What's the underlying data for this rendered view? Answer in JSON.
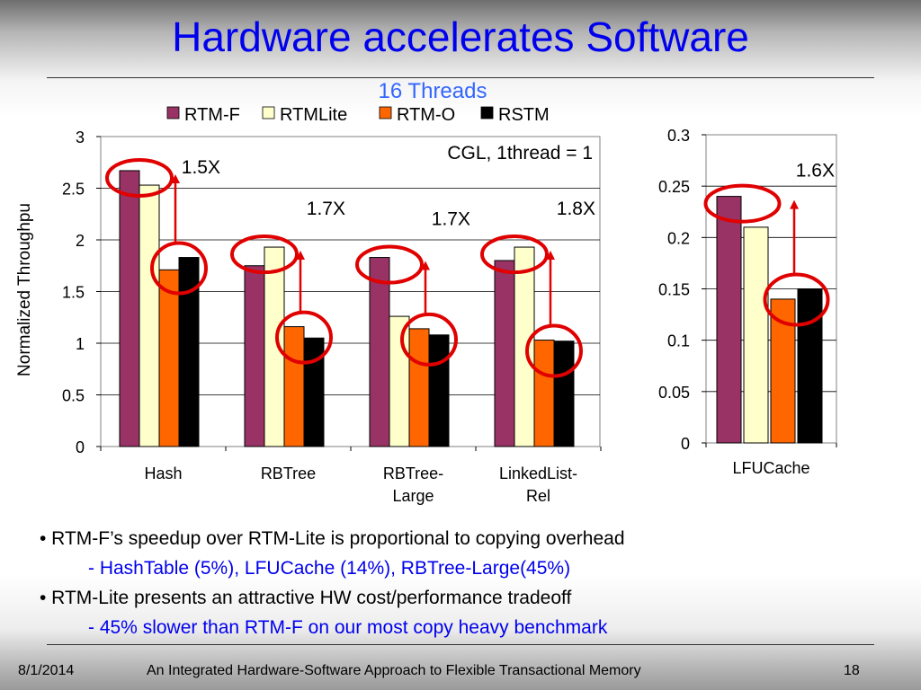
{
  "slide": {
    "title": "Hardware accelerates Software",
    "subtitle": "16 Threads",
    "bullets": [
      {
        "text": "• RTM-F’s speedup over RTM-Lite is proportional to copying overhead",
        "sub": "- HashTable (5%), LFUCache (14%), RBTree-Large(45%)"
      },
      {
        "text": "•  RTM-Lite presents an attractive HW cost/performance tradeoff",
        "sub": "- 45% slower than RTM-F on our most copy heavy benchmark"
      }
    ],
    "footer": {
      "date": "8/1/2014",
      "center": "An Integrated Hardware-Software Approach to Flexible Transactional Memory",
      "page": "18"
    }
  },
  "chart_data": [
    {
      "type": "bar",
      "categories": [
        [
          "Hash"
        ],
        [
          "RBTree"
        ],
        [
          "RBTree-",
          "Large"
        ],
        [
          "LinkedList-",
          "Rel"
        ]
      ],
      "series": [
        {
          "name": "RTM-F",
          "color": "#993366",
          "values": [
            2.67,
            1.75,
            1.83,
            1.8
          ]
        },
        {
          "name": "RTMLite",
          "color": "#ffffcc",
          "values": [
            2.53,
            1.93,
            1.26,
            1.93
          ]
        },
        {
          "name": "RTM-O",
          "color": "#ff6600",
          "values": [
            1.71,
            1.16,
            1.14,
            1.03
          ]
        },
        {
          "name": "RSTM",
          "color": "#000000",
          "values": [
            1.83,
            1.05,
            1.08,
            1.02
          ]
        }
      ],
      "ylabel": "Normalized Throughpu",
      "ylim": [
        0,
        3
      ],
      "yticks": [
        "0",
        "0.5",
        "1",
        "1.5",
        "2",
        "2.5",
        "3"
      ],
      "grid": true,
      "legend": "top",
      "annotation": "CGL, 1thread = 1",
      "speedups": [
        "1.5X",
        "1.7X",
        "1.7X",
        "1.8X"
      ]
    },
    {
      "type": "bar",
      "categories": [
        [
          "LFUCache"
        ]
      ],
      "series": [
        {
          "name": "RTM-F",
          "color": "#993366",
          "values": [
            0.24
          ]
        },
        {
          "name": "RTMLite",
          "color": "#ffffcc",
          "values": [
            0.21
          ]
        },
        {
          "name": "RTM-O",
          "color": "#ff6600",
          "values": [
            0.14
          ]
        },
        {
          "name": "RSTM",
          "color": "#000000",
          "values": [
            0.15
          ]
        }
      ],
      "ylim": [
        0,
        0.3
      ],
      "yticks": [
        "0",
        "0.05",
        "0.1",
        "0.15",
        "0.2",
        "0.25",
        "0.3"
      ],
      "grid": true,
      "speedups": [
        "1.6X"
      ]
    }
  ]
}
